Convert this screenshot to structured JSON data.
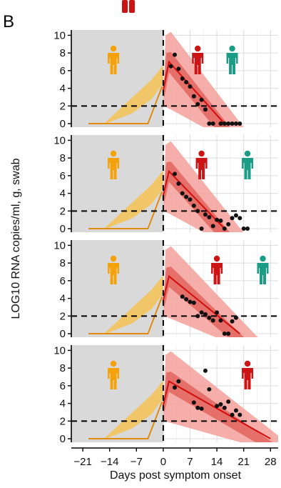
{
  "panel_label": "B",
  "chart_data": {
    "type": "line",
    "xlabel": "Days post symptom onset",
    "ylabel": "LOG10 RNA copies/ml, g, swab",
    "xticks": [
      -21,
      -14,
      -7,
      0,
      7,
      14,
      21,
      28
    ],
    "xtick_labels": [
      "−21",
      "−14",
      "−7",
      "0",
      "7",
      "14",
      "21",
      "28"
    ],
    "yticks": [
      0,
      2,
      4,
      6,
      8,
      10
    ],
    "xlim": [
      -24,
      30
    ],
    "ylim": [
      -0.4,
      10.6
    ],
    "threshold": 2,
    "onset_day": 0,
    "presymptomatic_shading": [
      -24,
      0
    ],
    "grid": true,
    "colors": {
      "shade": "#d9d9d9",
      "pre_band": "#f2c45e",
      "pre_line": "#e08a10",
      "post_outer": "#f3a09a",
      "post_inner": "#e2645e",
      "post_line": "#d10f0f",
      "points": "#111111",
      "icon_orange": "#f5a20a",
      "icon_red": "#cc1414",
      "icon_teal": "#1a9c85"
    },
    "panels": [
      {
        "icons": [
          {
            "color": "orange",
            "day": -13
          },
          {
            "color": "red",
            "day": 9
          },
          {
            "color": "teal",
            "day": 18
          }
        ],
        "pre_line": [
          [
            -19.5,
            0
          ],
          [
            -4,
            0
          ],
          [
            -0.3,
            4.2
          ]
        ],
        "pre_band": [
          [
            -15,
            0
          ],
          [
            -8,
            1.2
          ],
          [
            -3,
            2.8
          ],
          [
            0,
            4.6
          ],
          [
            0,
            6.6
          ],
          [
            -3,
            5.0
          ],
          [
            -8,
            3.0
          ],
          [
            -15,
            0.2
          ]
        ],
        "peak": [
          1.5,
          7.0
        ],
        "end_day": 16,
        "points": [
          [
            2,
            6.5
          ],
          [
            3,
            7.8
          ],
          [
            4,
            6.2
          ],
          [
            5,
            5.1
          ],
          [
            6,
            4.7
          ],
          [
            7,
            4.2
          ],
          [
            8,
            3.1
          ],
          [
            9,
            2.2
          ],
          [
            10,
            2.7
          ],
          [
            11,
            1.6
          ],
          [
            12,
            0
          ],
          [
            13,
            0
          ],
          [
            15,
            0
          ],
          [
            16,
            0
          ],
          [
            17,
            0
          ],
          [
            18,
            0
          ],
          [
            19,
            0
          ],
          [
            20,
            0
          ]
        ]
      },
      {
        "icons": [
          {
            "color": "orange",
            "day": -13
          },
          {
            "color": "red",
            "day": 10
          },
          {
            "color": "teal",
            "day": 22
          }
        ],
        "pre_line": [
          [
            -19.5,
            0
          ],
          [
            -4,
            0
          ],
          [
            -0.3,
            4.2
          ]
        ],
        "pre_band": [
          [
            -15,
            0
          ],
          [
            -8,
            1.2
          ],
          [
            -3,
            2.8
          ],
          [
            0,
            4.6
          ],
          [
            0,
            6.6
          ],
          [
            -3,
            5.0
          ],
          [
            -8,
            3.0
          ],
          [
            -15,
            0.2
          ]
        ],
        "peak": [
          1.5,
          6.5
        ],
        "end_day": 16,
        "points": [
          [
            3,
            6.2
          ],
          [
            4,
            5.1
          ],
          [
            5,
            4.0
          ],
          [
            6,
            3.6
          ],
          [
            7,
            3.3
          ],
          [
            8,
            2.6
          ],
          [
            9,
            2.0
          ],
          [
            10,
            0
          ],
          [
            11,
            1.6
          ],
          [
            12,
            1.3
          ],
          [
            13,
            0.3
          ],
          [
            14,
            1.0
          ],
          [
            15,
            0.9
          ],
          [
            16,
            0
          ],
          [
            17,
            0.5
          ],
          [
            18,
            1.2
          ],
          [
            19,
            1.5
          ],
          [
            20,
            1.2
          ],
          [
            21,
            0
          ],
          [
            22,
            0
          ]
        ]
      },
      {
        "icons": [
          {
            "color": "orange",
            "day": -13
          },
          {
            "color": "red",
            "day": 14
          },
          {
            "color": "teal",
            "day": 26
          }
        ],
        "pre_line": [
          [
            -19.5,
            0
          ],
          [
            -4,
            0
          ],
          [
            -0.3,
            4.2
          ]
        ],
        "pre_band": [
          [
            -15,
            0
          ],
          [
            -8,
            1.2
          ],
          [
            -3,
            2.8
          ],
          [
            0,
            4.6
          ],
          [
            0,
            6.6
          ],
          [
            -3,
            5.0
          ],
          [
            -8,
            3.0
          ],
          [
            -15,
            0.2
          ]
        ],
        "peak": [
          1.5,
          6.5
        ],
        "end_day": 20,
        "points": [
          [
            5,
            4.2
          ],
          [
            6,
            3.9
          ],
          [
            7,
            3.6
          ],
          [
            8,
            3.5
          ],
          [
            9,
            2.0
          ],
          [
            10,
            2.4
          ],
          [
            11,
            2.2
          ],
          [
            12,
            1.8
          ],
          [
            13,
            1.5
          ],
          [
            14,
            2.4
          ],
          [
            15,
            1.5
          ],
          [
            16,
            0
          ],
          [
            17,
            0
          ],
          [
            18,
            1.4
          ],
          [
            19,
            1.8
          ]
        ]
      },
      {
        "icons": [
          {
            "color": "orange",
            "day": -13
          },
          {
            "color": "red",
            "day": 22
          }
        ],
        "pre_line": [
          [
            -19.5,
            0
          ],
          [
            -4,
            0
          ],
          [
            -0.3,
            4.2
          ]
        ],
        "pre_band": [
          [
            -15,
            0
          ],
          [
            -8,
            1.2
          ],
          [
            -3,
            2.8
          ],
          [
            0,
            4.6
          ],
          [
            0,
            6.6
          ],
          [
            -3,
            5.0
          ],
          [
            -8,
            3.0
          ],
          [
            -15,
            0.2
          ]
        ],
        "peak": [
          1.5,
          6.5
        ],
        "end_day": 28,
        "points": [
          [
            3,
            5.8
          ],
          [
            4,
            6.5
          ],
          [
            8,
            4.1
          ],
          [
            9,
            3.5
          ],
          [
            10,
            3.4
          ],
          [
            11,
            7.7
          ],
          [
            12,
            5.6
          ],
          [
            14,
            3.7
          ],
          [
            15,
            3.9
          ],
          [
            16,
            3.5
          ],
          [
            17,
            4.2
          ],
          [
            18,
            2.7
          ],
          [
            19,
            3.2
          ],
          [
            20,
            2.7
          ]
        ]
      }
    ]
  }
}
